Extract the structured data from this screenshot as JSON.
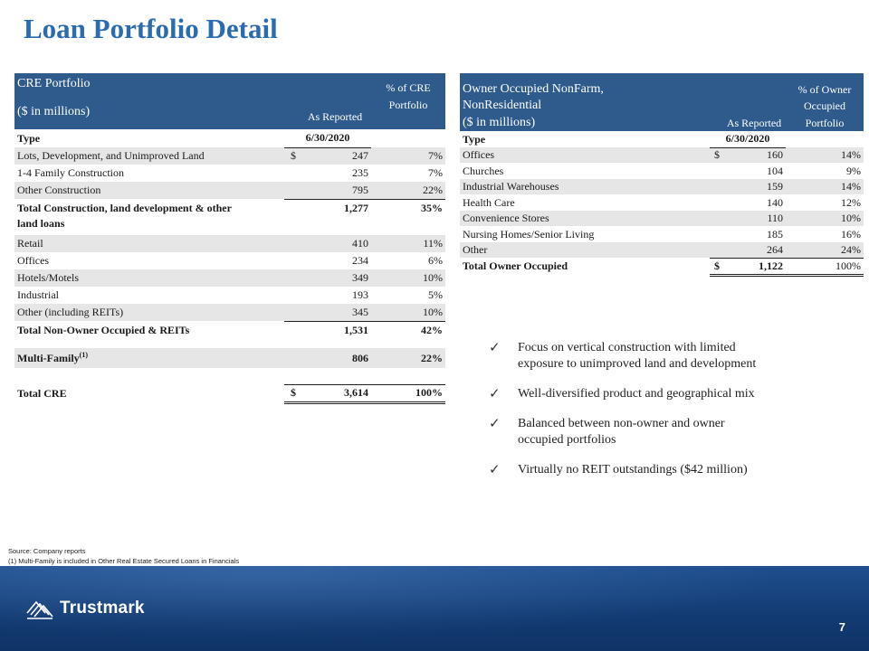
{
  "title": "Loan Portfolio Detail",
  "cre": {
    "header": {
      "line1": "CRE Portfolio",
      "line2": "($ in millions)",
      "col_reported": "As Reported",
      "col_pct_line1": "% of CRE",
      "col_pct_line2": "Portfolio"
    },
    "type_label": "Type",
    "date": "6/30/2020",
    "rows": [
      {
        "label": "Lots, Development, and Unimproved Land",
        "dollar": "$",
        "value": "247",
        "pct": "7%"
      },
      {
        "label": "1-4 Family Construction",
        "dollar": "",
        "value": "235",
        "pct": "7%"
      },
      {
        "label": "Other Construction",
        "dollar": "",
        "value": "795",
        "pct": "22%"
      }
    ],
    "subtotal1": {
      "label_line1": "Total Construction, land development & other",
      "label_line2": "land loans",
      "value": "1,277",
      "pct": "35%"
    },
    "rows2": [
      {
        "label": "Retail",
        "value": "410",
        "pct": "11%"
      },
      {
        "label": "Offices",
        "value": "234",
        "pct": "6%"
      },
      {
        "label": "Hotels/Motels",
        "value": "349",
        "pct": "10%"
      },
      {
        "label": "Industrial",
        "value": "193",
        "pct": "5%"
      },
      {
        "label": "Other  (including REITs)",
        "value": "345",
        "pct": "10%"
      }
    ],
    "subtotal2": {
      "label": "Total Non-Owner Occupied & REITs",
      "value": "1,531",
      "pct": "42%"
    },
    "multifamily": {
      "label": "Multi-Family",
      "footnote": "(1)",
      "value": "806",
      "pct": "22%"
    },
    "total": {
      "label": "Total CRE",
      "dollar": "$",
      "value": "3,614",
      "pct": "100%"
    }
  },
  "oo": {
    "header": {
      "line1": "Owner Occupied NonFarm,",
      "line2": "NonResidential",
      "line3": "($ in millions)",
      "col_reported": "As Reported",
      "col_pct_line1": "% of Owner",
      "col_pct_line2": "Occupied",
      "col_pct_line3": "Portfolio"
    },
    "type_label": "Type",
    "date": "6/30/2020",
    "rows": [
      {
        "label": "Offices",
        "dollar": "$",
        "value": "160",
        "pct": "14%"
      },
      {
        "label": "Churches",
        "dollar": "",
        "value": "104",
        "pct": "9%"
      },
      {
        "label": "Industrial Warehouses",
        "dollar": "",
        "value": "159",
        "pct": "14%"
      },
      {
        "label": "Health Care",
        "dollar": "",
        "value": "140",
        "pct": "12%"
      },
      {
        "label": "Convenience Stores",
        "dollar": "",
        "value": "110",
        "pct": "10%"
      },
      {
        "label": "Nursing Homes/Senior Living",
        "dollar": "",
        "value": "185",
        "pct": "16%"
      },
      {
        "label": "Other",
        "dollar": "",
        "value": "264",
        "pct": "24%"
      }
    ],
    "total": {
      "label": "Total Owner Occupied",
      "dollar": "$",
      "value": "1,122",
      "pct": "100%"
    }
  },
  "bullets": [
    {
      "line1": "Focus on vertical  construction  with limited",
      "line2": "exposure  to unimproved  land and development"
    },
    {
      "line1": "Well-diversified  product and geographical  mix",
      "line2": ""
    },
    {
      "line1": "Balanced between  non-owner  and owner",
      "line2": "occupied  portfolios"
    },
    {
      "line1": "Virtually  no REIT outstandings  ($42 million)",
      "line2": ""
    }
  ],
  "source": {
    "line1": "Source:  Company  reports",
    "line2": "(1) Multi-Family  is included  in Other Real Estate Secured  Loans  in Financials"
  },
  "footer": {
    "brand": "Trustmark",
    "page_number": "7"
  },
  "colors": {
    "title": "#2b6cb0",
    "header_bg": "#2e5a8c",
    "row_shade": "#e6e6e6",
    "footer_bg": "#123a72"
  }
}
